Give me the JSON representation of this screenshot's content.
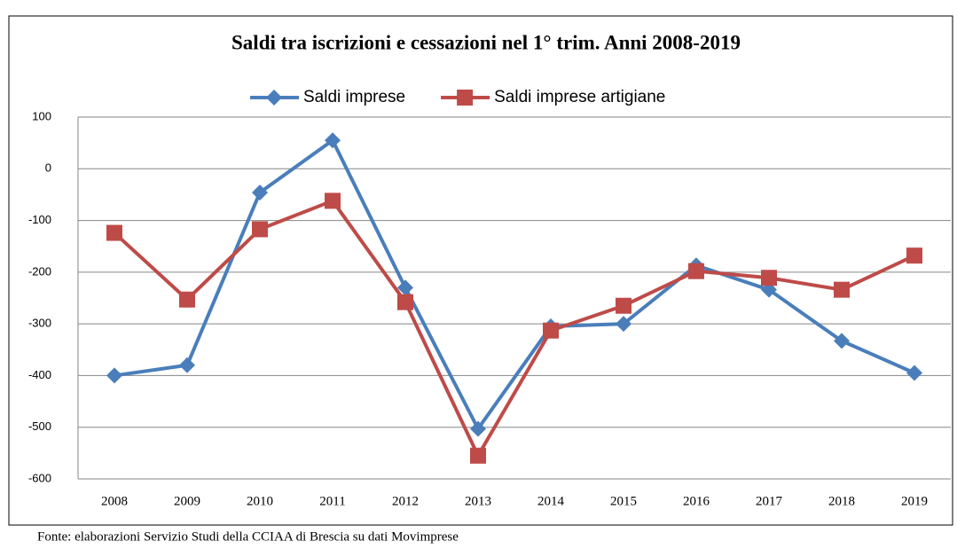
{
  "chart_data": {
    "type": "line",
    "title": "Saldi tra iscrizioni  e cessazioni nel 1° trim. Anni 2008-2019",
    "categories": [
      "2008",
      "2009",
      "2010",
      "2011",
      "2012",
      "2013",
      "2014",
      "2015",
      "2016",
      "2017",
      "2018",
      "2019"
    ],
    "series": [
      {
        "name": "Saldi imprese",
        "color": "#4a7ebb",
        "marker": "diamond",
        "values": [
          -400,
          -380,
          -46,
          55,
          -230,
          -503,
          -305,
          -300,
          -187,
          -234,
          -333,
          -395
        ]
      },
      {
        "name": "Saldi imprese artigiane",
        "color": "#be4b48",
        "marker": "square",
        "values": [
          -124,
          -253,
          -117,
          -62,
          -258,
          -555,
          -313,
          -265,
          -198,
          -211,
          -234,
          -168
        ]
      }
    ],
    "ylim": [
      -600,
      100
    ],
    "yticks": [
      -600,
      -500,
      -400,
      -300,
      -200,
      -100,
      0,
      100
    ],
    "grid": true,
    "legend": "top",
    "source": "Fonte: elaborazioni Servizio Studi della CCIAA  di Brescia su dati Movimprese"
  }
}
